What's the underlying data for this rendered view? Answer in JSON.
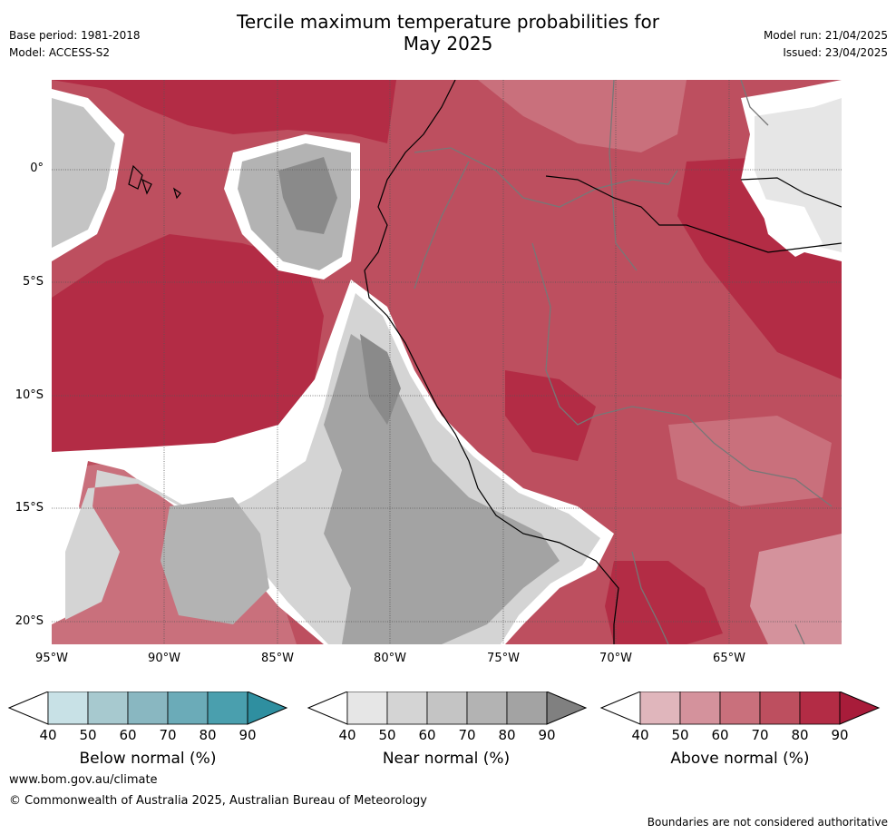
{
  "header": {
    "title_line1": "Tercile maximum temperature probabilities for",
    "title_line2": "May 2025",
    "base_period": "Base period: 1981-2018",
    "model": "Model: ACCESS-S2",
    "model_run": "Model run: 21/04/2025",
    "issued": "Issued: 23/04/2025"
  },
  "map": {
    "lat_labels": [
      "0°",
      "5°S",
      "10°S",
      "15°S",
      "20°S"
    ],
    "lon_labels": [
      "95°W",
      "90°W",
      "85°W",
      "80°W",
      "75°W",
      "70°W",
      "65°W"
    ],
    "extent": {
      "lon_min": -95,
      "lon_max": -60,
      "lat_min": -21,
      "lat_max": 4
    },
    "colors": {
      "above": [
        "#ffffff",
        "#e0b6bc",
        "#d4929c",
        "#c9707c",
        "#bd4f5f",
        "#b32c45",
        "#a81c3a"
      ],
      "near": [
        "#ffffff",
        "#e6e6e6",
        "#d4d4d4",
        "#c4c4c4",
        "#b3b3b3",
        "#a3a3a3",
        "#8a8a8a"
      ],
      "below": [
        "#ffffff",
        "#c8e1e6",
        "#a7c9cf",
        "#89b7c1",
        "#6babb8",
        "#4a9fae",
        "#2f8fa0"
      ]
    }
  },
  "colorbars": [
    {
      "title": "Below normal (%)",
      "ticks": [
        "40",
        "50",
        "60",
        "70",
        "80",
        "90"
      ],
      "colors": [
        "#c8e1e6",
        "#a7c9cf",
        "#89b7c1",
        "#6babb8",
        "#4a9fae"
      ],
      "tip": "#2f8fa0"
    },
    {
      "title": "Near normal (%)",
      "ticks": [
        "40",
        "50",
        "60",
        "70",
        "80",
        "90"
      ],
      "colors": [
        "#e6e6e6",
        "#d4d4d4",
        "#c4c4c4",
        "#b3b3b3",
        "#a3a3a3"
      ],
      "tip": "#808080"
    },
    {
      "title": "Above normal (%)",
      "ticks": [
        "40",
        "50",
        "60",
        "70",
        "80",
        "90"
      ],
      "colors": [
        "#e0b6bc",
        "#d4929c",
        "#c9707c",
        "#bd4f5f",
        "#b32c45"
      ],
      "tip": "#a81c3a"
    }
  ],
  "footer": {
    "url": "www.bom.gov.au/climate",
    "copyright": "© Commonwealth of Australia 2025, Australian Bureau of Meteorology",
    "boundary_note": "Boundaries are not considered authoritative"
  }
}
